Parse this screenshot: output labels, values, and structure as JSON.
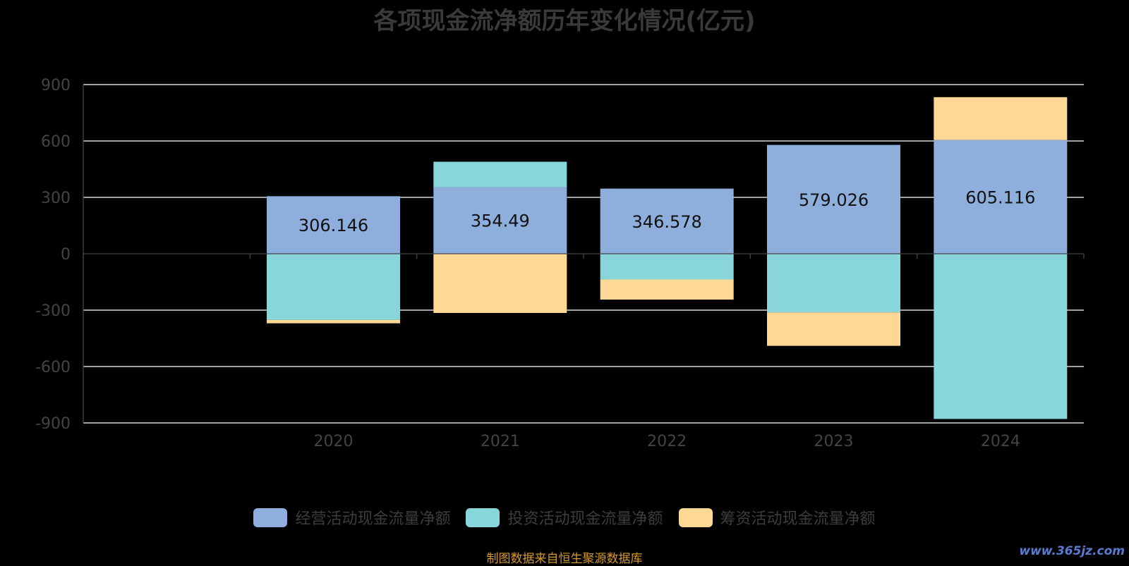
{
  "title": "各项现金流净额历年变化情况(亿元)",
  "source_note": "制图数据来自恒生聚源数据库",
  "watermark": "www.365jz.com",
  "colors": {
    "background": "#000000",
    "operating": "#8EAEDC",
    "investing": "#88D6D9",
    "financing": "#FFD895",
    "grid": "#FFFFFF",
    "axis_text": "#444444"
  },
  "chart_data": {
    "type": "bar",
    "stacked": true,
    "categories": [
      "2020",
      "2021",
      "2022",
      "2023",
      "2024"
    ],
    "series": [
      {
        "name": "经营活动现金流量净额",
        "values": [
          306.146,
          354.49,
          346.578,
          579.026,
          605.116
        ],
        "color": "#8EAEDC",
        "show_labels": true
      },
      {
        "name": "投资活动现金流量净额",
        "values": [
          -352,
          135,
          -137,
          -312,
          -879
        ],
        "color": "#88D6D9",
        "show_labels": false
      },
      {
        "name": "筹资活动现金流量净额",
        "values": [
          -18,
          -315,
          -107,
          -178,
          228
        ],
        "color": "#FFD895",
        "show_labels": false
      }
    ],
    "ylim": [
      -900,
      900
    ],
    "yticks": [
      -900,
      -600,
      -300,
      0,
      300,
      600,
      900
    ],
    "grid": true,
    "legend_position": "bottom-center"
  }
}
